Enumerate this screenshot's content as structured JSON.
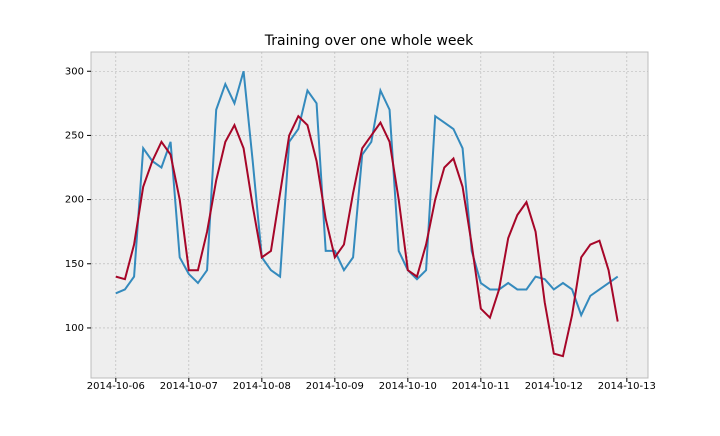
{
  "chart_data": {
    "type": "line",
    "title": "Training over one whole week",
    "x": [
      0,
      0.125,
      0.25,
      0.375,
      0.5,
      0.625,
      0.75,
      0.875,
      1,
      1.125,
      1.25,
      1.375,
      1.5,
      1.625,
      1.75,
      1.875,
      2,
      2.125,
      2.25,
      2.375,
      2.5,
      2.625,
      2.75,
      2.875,
      3,
      3.125,
      3.25,
      3.375,
      3.5,
      3.625,
      3.75,
      3.875,
      4,
      4.125,
      4.25,
      4.375,
      4.5,
      4.625,
      4.75,
      4.875,
      5,
      5.125,
      5.25,
      5.375,
      5.5,
      5.625,
      5.75,
      5.875,
      6,
      6.125,
      6.25,
      6.375,
      6.5,
      6.625,
      6.75,
      6.875
    ],
    "series": [
      {
        "color": "#348abd",
        "values": [
          127,
          130,
          140,
          240,
          230,
          225,
          245,
          155,
          142,
          135,
          145,
          270,
          290,
          275,
          300,
          230,
          155,
          145,
          140,
          245,
          255,
          285,
          275,
          160,
          160,
          145,
          155,
          235,
          245,
          285,
          270,
          160,
          145,
          138,
          145,
          265,
          260,
          255,
          240,
          160,
          135,
          130,
          130,
          135,
          130,
          130,
          140,
          138,
          130,
          135,
          130,
          110,
          125,
          130,
          135,
          140
        ]
      },
      {
        "color": "#a60628",
        "values": [
          140,
          138,
          165,
          210,
          230,
          245,
          235,
          200,
          145,
          145,
          175,
          215,
          245,
          258,
          240,
          195,
          155,
          160,
          205,
          250,
          265,
          258,
          230,
          185,
          155,
          165,
          205,
          240,
          250,
          260,
          245,
          200,
          145,
          140,
          165,
          200,
          225,
          232,
          210,
          165,
          115,
          108,
          130,
          170,
          188,
          198,
          175,
          120,
          80,
          78,
          110,
          155,
          165,
          168,
          145,
          105
        ]
      }
    ],
    "xlim": [
      -0.34,
      7.29
    ],
    "xticks": [
      {
        "value": 0,
        "label": "2014-10-06"
      },
      {
        "value": 1,
        "label": "2014-10-07"
      },
      {
        "value": 2,
        "label": "2014-10-08"
      },
      {
        "value": 3,
        "label": "2014-10-09"
      },
      {
        "value": 4,
        "label": "2014-10-10"
      },
      {
        "value": 5,
        "label": "2014-10-11"
      },
      {
        "value": 6,
        "label": "2014-10-12"
      },
      {
        "value": 7,
        "label": "2014-10-13"
      }
    ],
    "ylim": [
      61,
      315
    ],
    "yticks": [
      100,
      150,
      200,
      250,
      300
    ],
    "grid": true
  }
}
